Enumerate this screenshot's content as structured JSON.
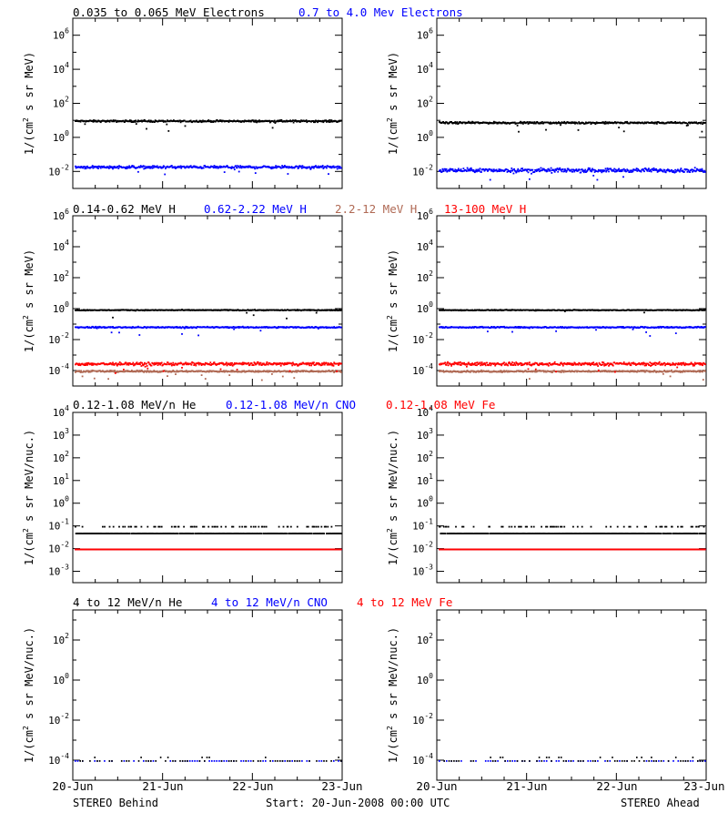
{
  "colors": {
    "black": "#000000",
    "blue": "#0000ff",
    "brown": "#b06a55",
    "red": "#ff0000"
  },
  "x_ticks": [
    "20-Jun",
    "21-Jun",
    "22-Jun",
    "23-Jun"
  ],
  "footer": {
    "left": "STEREO Behind",
    "center": "Start: 20-Jun-2008 00:00 UTC",
    "right": "STEREO Ahead"
  },
  "chart_data": [
    {
      "type": "scatter",
      "row": 0,
      "legend": [
        {
          "label": "0.035 to 0.065 MeV Electrons",
          "color": "#000000"
        },
        {
          "label": "0.7 to 4.0 Mev Electrons",
          "color": "#0000ff"
        }
      ],
      "ylabel": "1/(cm2 s sr MeV)",
      "yscale": "log",
      "ylim_exp": [
        -3,
        7
      ],
      "ytick_exps": [
        -2,
        0,
        2,
        4,
        6
      ],
      "xlim_days": [
        0,
        3
      ],
      "behind": {
        "series": [
          {
            "color": "#000000",
            "level": 10,
            "spread": 0.08
          },
          {
            "color": "#0000ff",
            "level": 0.02,
            "spread": 0.12
          }
        ]
      },
      "ahead": {
        "series": [
          {
            "color": "#000000",
            "level": 8,
            "spread": 0.08
          },
          {
            "color": "#0000ff",
            "level": 0.013,
            "spread": 0.17
          }
        ]
      }
    },
    {
      "type": "scatter",
      "row": 1,
      "legend": [
        {
          "label": "0.14-0.62 MeV H",
          "color": "#000000"
        },
        {
          "label": "0.62-2.22 MeV H",
          "color": "#0000ff"
        },
        {
          "label": "2.2-12 MeV H",
          "color": "#b06a55"
        },
        {
          "label": "13-100 MeV H",
          "color": "#ff0000"
        }
      ],
      "ylabel": "1/(cm2 s sr MeV)",
      "yscale": "log",
      "ylim_exp": [
        -5,
        6
      ],
      "ytick_exps": [
        -4,
        -2,
        0,
        2,
        4,
        6
      ],
      "xlim_days": [
        0,
        3
      ],
      "behind": {
        "series": [
          {
            "color": "#000000",
            "level": 0.9,
            "spread": 0.04
          },
          {
            "color": "#0000ff",
            "level": 0.07,
            "spread": 0.06
          },
          {
            "color": "#b06a55",
            "level": 0.0001,
            "spread": 0.08
          },
          {
            "color": "#ff0000",
            "level": 0.0003,
            "spread": 0.15
          }
        ]
      },
      "ahead": {
        "series": [
          {
            "color": "#000000",
            "level": 0.9,
            "spread": 0.04
          },
          {
            "color": "#0000ff",
            "level": 0.07,
            "spread": 0.06
          },
          {
            "color": "#b06a55",
            "level": 0.0001,
            "spread": 0.08
          },
          {
            "color": "#ff0000",
            "level": 0.0003,
            "spread": 0.15
          }
        ]
      }
    },
    {
      "type": "scatter",
      "row": 2,
      "legend": [
        {
          "label": "0.12-1.08 MeV/n He",
          "color": "#000000"
        },
        {
          "label": "0.12-1.08 MeV/n CNO",
          "color": "#0000ff"
        },
        {
          "label": "0.12-1.08 MeV Fe",
          "color": "#ff0000"
        }
      ],
      "ylabel": "1/(cm2 s sr MeV/nuc.)",
      "yscale": "log",
      "ylim_exp": [
        -3.5,
        4
      ],
      "ytick_exps": [
        -3,
        -2,
        -1,
        0,
        1,
        2,
        3,
        4
      ],
      "xlim_days": [
        0,
        3
      ],
      "behind": {
        "series": [
          {
            "color": "#000000",
            "level": 0.05,
            "spread": 0.0,
            "upper": 0.1
          },
          {
            "color": "#0000ff",
            "level": 0.01,
            "spread": 0.0
          },
          {
            "color": "#ff0000",
            "level": 0.01,
            "spread": 0.0
          }
        ]
      },
      "ahead": {
        "series": [
          {
            "color": "#000000",
            "level": 0.05,
            "spread": 0.0,
            "upper": 0.1
          },
          {
            "color": "#0000ff",
            "level": 0.01,
            "spread": 0.0
          },
          {
            "color": "#ff0000",
            "level": 0.01,
            "spread": 0.0
          }
        ]
      }
    },
    {
      "type": "scatter",
      "row": 3,
      "legend": [
        {
          "label": "4 to 12 MeV/n He",
          "color": "#000000"
        },
        {
          "label": "4 to 12 MeV/n CNO",
          "color": "#0000ff"
        },
        {
          "label": "4 to 12 MeV Fe",
          "color": "#ff0000"
        }
      ],
      "ylabel": "1/(cm2 s sr MeV/nuc.)",
      "yscale": "log",
      "ylim_exp": [
        -5,
        3.5
      ],
      "ytick_exps": [
        -4,
        -2,
        0,
        2
      ],
      "xlim_days": [
        0,
        3
      ],
      "behind": {
        "series": [
          {
            "color": "#0000ff",
            "level": 0.0001,
            "spread": 0.0,
            "sparse": true
          },
          {
            "color": "#000000",
            "level": 0.0001,
            "spread": 0.0,
            "sparse": true,
            "upper": 0.00015
          }
        ]
      },
      "ahead": {
        "series": [
          {
            "color": "#0000ff",
            "level": 0.0001,
            "spread": 0.0,
            "sparse": true
          },
          {
            "color": "#000000",
            "level": 0.0001,
            "spread": 0.0,
            "sparse": true,
            "upper": 0.00015
          }
        ]
      }
    }
  ]
}
